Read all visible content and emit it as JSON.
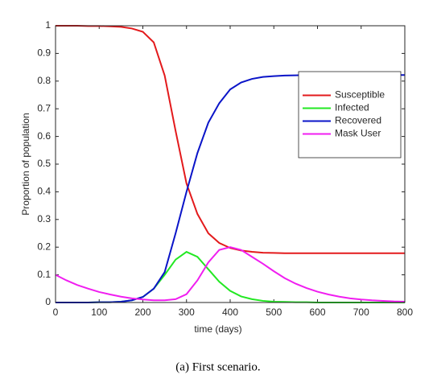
{
  "chart_data": {
    "type": "line",
    "xlabel": "time (days)",
    "ylabel": "Proportion of population",
    "x": [
      0,
      25,
      50,
      75,
      100,
      125,
      150,
      175,
      200,
      225,
      250,
      275,
      300,
      325,
      350,
      375,
      400,
      425,
      450,
      475,
      500,
      525,
      550,
      575,
      600,
      625,
      650,
      675,
      700,
      725,
      750,
      775,
      800
    ],
    "series": [
      {
        "name": "Susceptible",
        "color": "#e31a1c",
        "values": [
          1,
          1,
          1,
          0.999,
          0.999,
          0.998,
          0.996,
          0.99,
          0.978,
          0.94,
          0.82,
          0.62,
          0.43,
          0.32,
          0.25,
          0.215,
          0.197,
          0.188,
          0.183,
          0.18,
          0.179,
          0.178,
          0.178,
          0.178,
          0.178,
          0.178,
          0.178,
          0.178,
          0.178,
          0.178,
          0.178,
          0.178,
          0.178
        ]
      },
      {
        "name": "Infected",
        "color": "#22e822",
        "values": [
          0,
          0,
          0,
          0,
          0.001,
          0.001,
          0.003,
          0.008,
          0.02,
          0.05,
          0.1,
          0.155,
          0.183,
          0.165,
          0.12,
          0.075,
          0.042,
          0.022,
          0.012,
          0.006,
          0.003,
          0.002,
          0.001,
          0.001,
          0,
          0,
          0,
          0,
          0,
          0,
          0,
          0,
          0
        ]
      },
      {
        "name": "Recovered",
        "color": "#0a14c8",
        "values": [
          0,
          0,
          0,
          0,
          0.001,
          0.001,
          0.003,
          0.008,
          0.02,
          0.05,
          0.11,
          0.25,
          0.4,
          0.54,
          0.65,
          0.72,
          0.77,
          0.795,
          0.808,
          0.815,
          0.818,
          0.82,
          0.821,
          0.822,
          0.822,
          0.822,
          0.822,
          0.822,
          0.822,
          0.822,
          0.822,
          0.822,
          0.822
        ]
      },
      {
        "name": "Mask User",
        "color": "#f01ef0",
        "values": [
          0.1,
          0.08,
          0.063,
          0.05,
          0.038,
          0.029,
          0.021,
          0.015,
          0.011,
          0.008,
          0.008,
          0.012,
          0.03,
          0.08,
          0.145,
          0.19,
          0.2,
          0.19,
          0.165,
          0.14,
          0.113,
          0.088,
          0.068,
          0.052,
          0.039,
          0.029,
          0.021,
          0.015,
          0.011,
          0.008,
          0.006,
          0.004,
          0.003
        ]
      }
    ],
    "xlim": [
      0,
      800
    ],
    "xticks": [
      0,
      100,
      200,
      300,
      400,
      500,
      600,
      700,
      800
    ],
    "ylim": [
      0,
      1
    ],
    "yticks": [
      0,
      0.1,
      0.2,
      0.3,
      0.4,
      0.5,
      0.6,
      0.7,
      0.8,
      0.9,
      1
    ],
    "legend": "northeast",
    "grid": false
  },
  "caption": "(a) First scenario."
}
